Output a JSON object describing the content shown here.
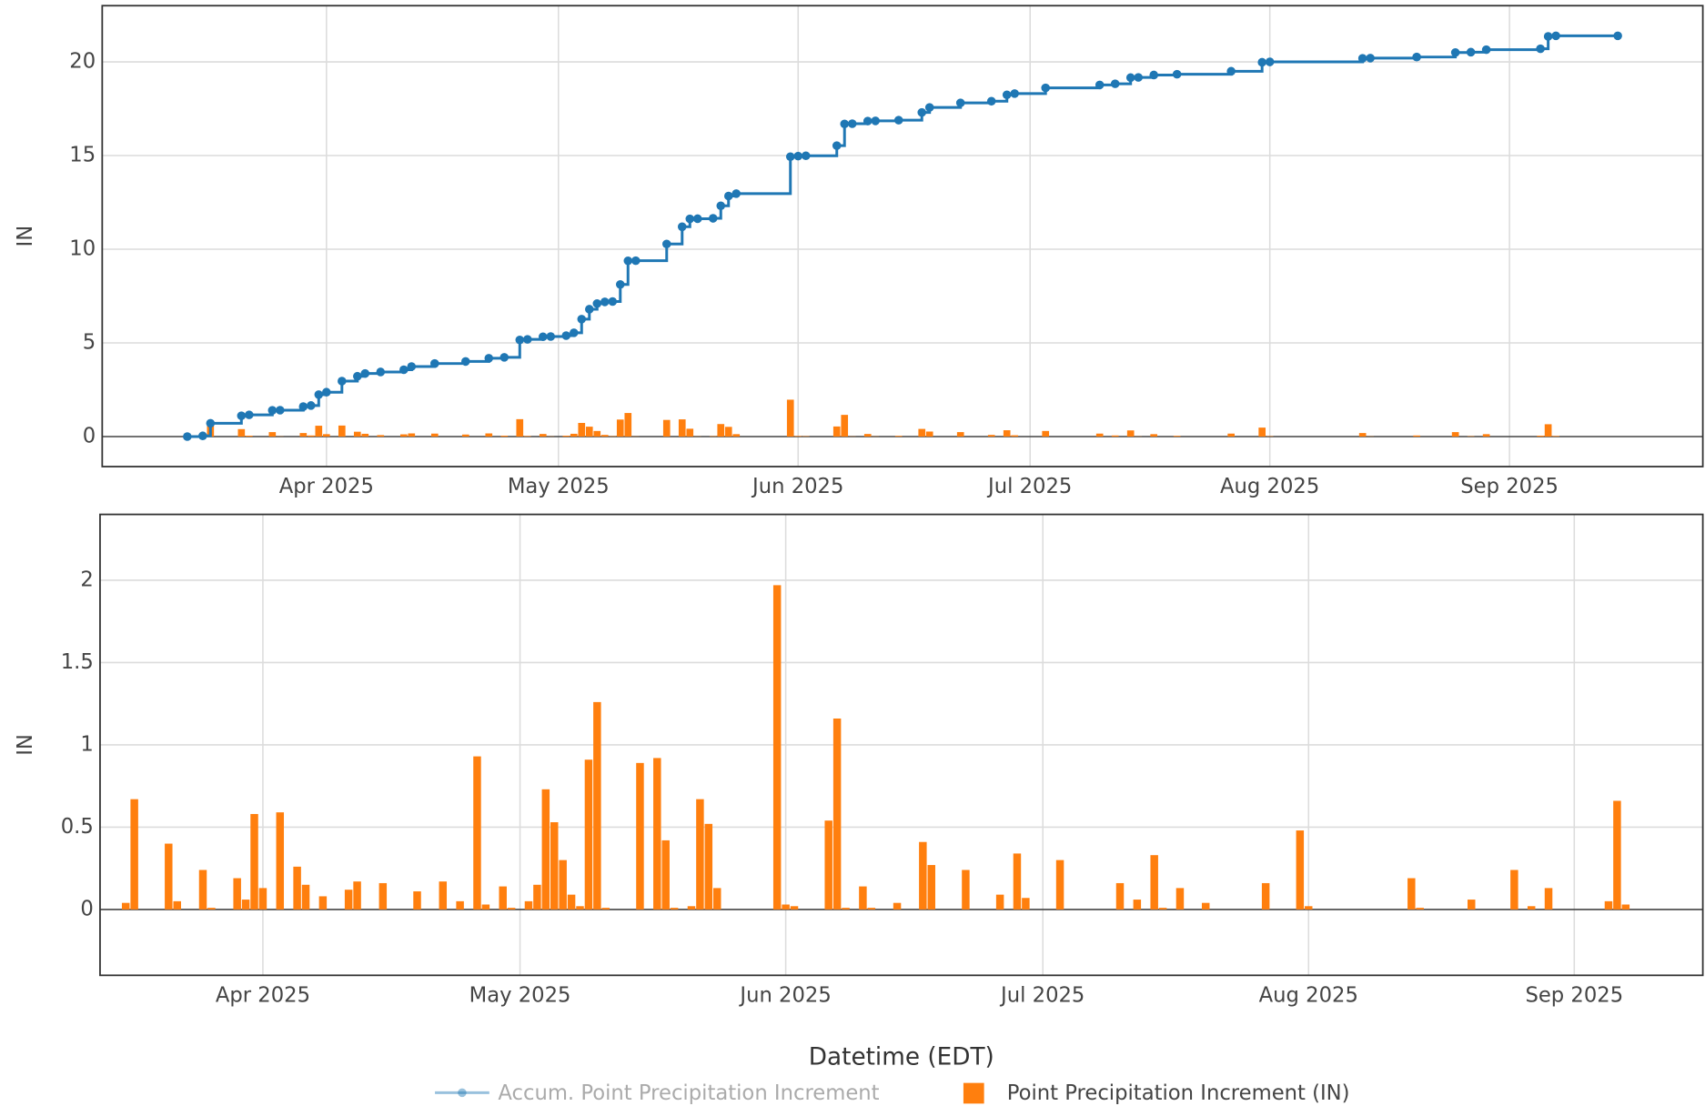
{
  "chart_data": [
    {
      "type": "line_bar",
      "ylabel": "IN",
      "ylim": [
        -1.6,
        23
      ],
      "yticks": [
        0,
        5,
        10,
        15,
        20
      ],
      "xlim": [
        "2025-03-03",
        "2025-09-26"
      ],
      "xticks": [
        {
          "value": "2025-04-01",
          "label": "Apr 2025"
        },
        {
          "value": "2025-05-01",
          "label": "May 2025"
        },
        {
          "value": "2025-06-01",
          "label": "Jun 2025"
        },
        {
          "value": "2025-07-01",
          "label": "Jul 2025"
        },
        {
          "value": "2025-08-01",
          "label": "Aug 2025"
        },
        {
          "value": "2025-09-01",
          "label": "Sep 2025"
        }
      ],
      "grid": true,
      "line_shape": "hv",
      "x": [
        "2025-03-16",
        "2025-03-17",
        "2025-03-21",
        "2025-03-22",
        "2025-03-25",
        "2025-03-26",
        "2025-03-29",
        "2025-03-30",
        "2025-03-31",
        "2025-04-01",
        "2025-04-03",
        "2025-04-05",
        "2025-04-06",
        "2025-04-08",
        "2025-04-11",
        "2025-04-12",
        "2025-04-15",
        "2025-04-19",
        "2025-04-22",
        "2025-04-24",
        "2025-04-26",
        "2025-04-27",
        "2025-04-29",
        "2025-04-30",
        "2025-05-02",
        "2025-05-03",
        "2025-05-04",
        "2025-05-05",
        "2025-05-06",
        "2025-05-07",
        "2025-05-08",
        "2025-05-09",
        "2025-05-10",
        "2025-05-11",
        "2025-05-15",
        "2025-05-17",
        "2025-05-18",
        "2025-05-19",
        "2025-05-21",
        "2025-05-22",
        "2025-05-23",
        "2025-05-24",
        "2025-05-31",
        "2025-06-01",
        "2025-06-02",
        "2025-06-06",
        "2025-06-07",
        "2025-06-08",
        "2025-06-10",
        "2025-06-11",
        "2025-06-14",
        "2025-06-17",
        "2025-06-18",
        "2025-06-22",
        "2025-06-26",
        "2025-06-28",
        "2025-06-29",
        "2025-07-03",
        "2025-07-10",
        "2025-07-12",
        "2025-07-14",
        "2025-07-15",
        "2025-07-17",
        "2025-07-20",
        "2025-07-27",
        "2025-07-31",
        "2025-08-01",
        "2025-08-13",
        "2025-08-14",
        "2025-08-20",
        "2025-08-25",
        "2025-08-27",
        "2025-08-29",
        "2025-09-05",
        "2025-09-06",
        "2025-09-07"
      ],
      "series": [
        {
          "name": "Accum. Point Precipitation Increment",
          "type": "line",
          "color": "#1f77b4",
          "x": [
            "2025-03-14",
            "2025-03-16",
            "2025-03-17",
            "2025-03-21",
            "2025-03-22",
            "2025-03-25",
            "2025-03-26",
            "2025-03-29",
            "2025-03-30",
            "2025-03-31",
            "2025-04-01",
            "2025-04-03",
            "2025-04-05",
            "2025-04-06",
            "2025-04-08",
            "2025-04-11",
            "2025-04-12",
            "2025-04-15",
            "2025-04-19",
            "2025-04-22",
            "2025-04-24",
            "2025-04-26",
            "2025-04-27",
            "2025-04-29",
            "2025-04-30",
            "2025-05-02",
            "2025-05-03",
            "2025-05-04",
            "2025-05-05",
            "2025-05-06",
            "2025-05-07",
            "2025-05-08",
            "2025-05-09",
            "2025-05-10",
            "2025-05-11",
            "2025-05-15",
            "2025-05-17",
            "2025-05-18",
            "2025-05-19",
            "2025-05-21",
            "2025-05-22",
            "2025-05-23",
            "2025-05-24",
            "2025-05-31",
            "2025-06-01",
            "2025-06-02",
            "2025-06-06",
            "2025-06-07",
            "2025-06-08",
            "2025-06-10",
            "2025-06-11",
            "2025-06-14",
            "2025-06-17",
            "2025-06-18",
            "2025-06-22",
            "2025-06-26",
            "2025-06-28",
            "2025-06-29",
            "2025-07-03",
            "2025-07-10",
            "2025-07-12",
            "2025-07-14",
            "2025-07-15",
            "2025-07-17",
            "2025-07-20",
            "2025-07-27",
            "2025-07-31",
            "2025-08-01",
            "2025-08-13",
            "2025-08-14",
            "2025-08-20",
            "2025-08-25",
            "2025-08-27",
            "2025-08-29",
            "2025-09-05",
            "2025-09-06",
            "2025-09-07",
            "2025-09-15"
          ],
          "values": [
            0,
            0.04,
            0.71,
            1.11,
            1.16,
            1.4,
            1.41,
            1.6,
            1.66,
            2.24,
            2.37,
            2.96,
            3.22,
            3.37,
            3.45,
            3.57,
            3.74,
            3.9,
            4.01,
            4.18,
            4.23,
            5.16,
            5.19,
            5.33,
            5.34,
            5.39,
            5.54,
            6.27,
            6.8,
            7.1,
            7.19,
            7.21,
            8.12,
            9.38,
            9.39,
            10.28,
            11.2,
            11.62,
            11.63,
            11.65,
            12.32,
            12.84,
            12.97,
            14.94,
            14.97,
            14.99,
            15.53,
            16.69,
            16.7,
            16.84,
            16.85,
            16.89,
            17.3,
            17.57,
            17.81,
            17.9,
            18.24,
            18.31,
            18.61,
            18.77,
            18.83,
            19.16,
            19.17,
            19.3,
            19.34,
            19.5,
            19.98,
            20,
            20.19,
            20.2,
            20.26,
            20.5,
            20.52,
            20.65,
            20.7,
            21.36,
            21.39,
            21.39
          ]
        },
        {
          "name": "Point Precipitation Increment (IN)",
          "type": "bar",
          "color": "#ff7f0e",
          "values": [
            0.04,
            0.67,
            0.4,
            0.05,
            0.24,
            0.01,
            0.19,
            0.06,
            0.58,
            0.13,
            0.59,
            0.26,
            0.15,
            0.08,
            0.12,
            0.17,
            0.16,
            0.11,
            0.17,
            0.05,
            0.93,
            0.03,
            0.14,
            0.01,
            0.05,
            0.15,
            0.73,
            0.53,
            0.3,
            0.09,
            0.02,
            0.91,
            1.26,
            0.01,
            0.89,
            0.92,
            0.42,
            0.01,
            0.02,
            0.67,
            0.52,
            0.13,
            1.97,
            0.03,
            0.02,
            0.54,
            1.16,
            0.01,
            0.14,
            0.01,
            0.04,
            0.41,
            0.27,
            0.24,
            0.09,
            0.34,
            0.07,
            0.3,
            0.16,
            0.06,
            0.33,
            0.01,
            0.13,
            0.04,
            0.16,
            0.48,
            0.02,
            0.19,
            0.01,
            0.06,
            0.24,
            0.02,
            0.13,
            0.05,
            0.66,
            0.03
          ]
        }
      ]
    },
    {
      "type": "bar",
      "ylabel": "IN",
      "xlabel": "Datetime (EDT)",
      "ylim": [
        -0.4,
        2.4
      ],
      "yticks": [
        0,
        0.5,
        1,
        1.5,
        2
      ],
      "xlim": [
        "2025-03-13",
        "2025-09-16"
      ],
      "xticks": [
        {
          "value": "2025-04-01",
          "label": "Apr 2025"
        },
        {
          "value": "2025-05-01",
          "label": "May 2025"
        },
        {
          "value": "2025-06-01",
          "label": "Jun 2025"
        },
        {
          "value": "2025-07-01",
          "label": "Jul 2025"
        },
        {
          "value": "2025-08-01",
          "label": "Aug 2025"
        },
        {
          "value": "2025-09-01",
          "label": "Sep 2025"
        }
      ],
      "grid": true,
      "x": [
        "2025-03-16",
        "2025-03-17",
        "2025-03-21",
        "2025-03-22",
        "2025-03-25",
        "2025-03-26",
        "2025-03-29",
        "2025-03-30",
        "2025-03-31",
        "2025-04-01",
        "2025-04-03",
        "2025-04-05",
        "2025-04-06",
        "2025-04-08",
        "2025-04-11",
        "2025-04-12",
        "2025-04-15",
        "2025-04-19",
        "2025-04-22",
        "2025-04-24",
        "2025-04-26",
        "2025-04-27",
        "2025-04-29",
        "2025-04-30",
        "2025-05-02",
        "2025-05-03",
        "2025-05-04",
        "2025-05-05",
        "2025-05-06",
        "2025-05-07",
        "2025-05-08",
        "2025-05-09",
        "2025-05-10",
        "2025-05-11",
        "2025-05-15",
        "2025-05-17",
        "2025-05-18",
        "2025-05-19",
        "2025-05-21",
        "2025-05-22",
        "2025-05-23",
        "2025-05-24",
        "2025-05-31",
        "2025-06-01",
        "2025-06-02",
        "2025-06-06",
        "2025-06-07",
        "2025-06-08",
        "2025-06-10",
        "2025-06-11",
        "2025-06-14",
        "2025-06-17",
        "2025-06-18",
        "2025-06-22",
        "2025-06-26",
        "2025-06-28",
        "2025-06-29",
        "2025-07-03",
        "2025-07-10",
        "2025-07-12",
        "2025-07-14",
        "2025-07-15",
        "2025-07-17",
        "2025-07-20",
        "2025-07-27",
        "2025-07-31",
        "2025-08-01",
        "2025-08-13",
        "2025-08-14",
        "2025-08-20",
        "2025-08-25",
        "2025-08-27",
        "2025-08-29",
        "2025-09-05",
        "2025-09-06",
        "2025-09-07"
      ],
      "series": [
        {
          "type": "bar",
          "color": "#ff7f0e",
          "values": [
            0.04,
            0.67,
            0.4,
            0.05,
            0.24,
            0.01,
            0.19,
            0.06,
            0.58,
            0.13,
            0.59,
            0.26,
            0.15,
            0.08,
            0.12,
            0.17,
            0.16,
            0.11,
            0.17,
            0.05,
            0.93,
            0.03,
            0.14,
            0.01,
            0.05,
            0.15,
            0.73,
            0.53,
            0.3,
            0.09,
            0.02,
            0.91,
            1.26,
            0.01,
            0.89,
            0.92,
            0.42,
            0.01,
            0.02,
            0.67,
            0.52,
            0.13,
            1.97,
            0.03,
            0.02,
            0.54,
            1.16,
            0.01,
            0.14,
            0.01,
            0.04,
            0.41,
            0.27,
            0.24,
            0.09,
            0.34,
            0.07,
            0.3,
            0.16,
            0.06,
            0.33,
            0.01,
            0.13,
            0.04,
            0.16,
            0.48,
            0.02,
            0.19,
            0.01,
            0.06,
            0.24,
            0.02,
            0.13,
            0.05,
            0.66,
            0.03
          ]
        }
      ]
    }
  ]
}
